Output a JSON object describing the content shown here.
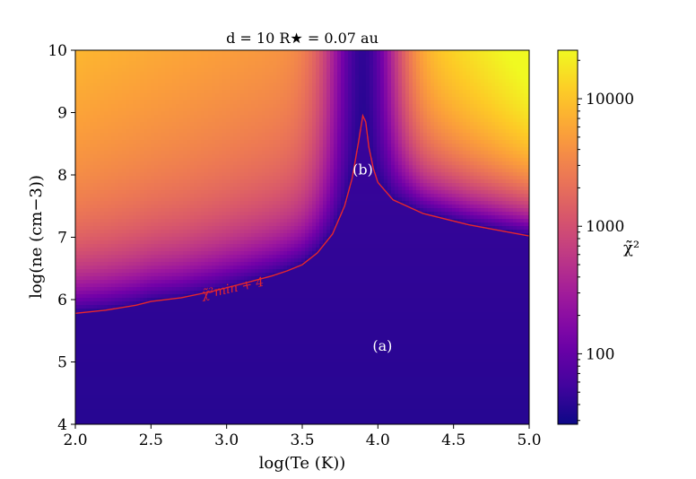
{
  "chart_data": {
    "type": "heatmap",
    "title": "d = 10 R★ = 0.07 au",
    "xlabel": "log(Te (K))",
    "ylabel": "log(ne (cm−3))",
    "colorbar_label": "χ̃²",
    "xlim": [
      2.0,
      5.0
    ],
    "ylim": [
      4,
      10
    ],
    "x_ticks": [
      "2.0",
      "2.5",
      "3.0",
      "3.5",
      "4.0",
      "4.5",
      "5.0"
    ],
    "y_ticks": [
      "4",
      "5",
      "6",
      "7",
      "8",
      "9",
      "10"
    ],
    "colorbar": {
      "scale": "log",
      "range": [
        28,
        24000
      ],
      "ticks": [
        "100",
        "1000",
        "10000"
      ],
      "colormap": [
        "#0d0887",
        "#46039f",
        "#7201a8",
        "#9c179e",
        "#bd3786",
        "#d8576b",
        "#ed7953",
        "#fb9f3a",
        "#fdca26",
        "#f0f921"
      ]
    },
    "contour": {
      "label": "χ̃²min + 4",
      "color": "#e8262d",
      "points": [
        [
          2.0,
          5.78
        ],
        [
          2.2,
          5.83
        ],
        [
          2.4,
          5.91
        ],
        [
          2.5,
          5.97
        ],
        [
          2.7,
          6.03
        ],
        [
          2.9,
          6.13
        ],
        [
          3.1,
          6.25
        ],
        [
          3.3,
          6.38
        ],
        [
          3.4,
          6.46
        ],
        [
          3.5,
          6.56
        ],
        [
          3.6,
          6.75
        ],
        [
          3.7,
          7.05
        ],
        [
          3.78,
          7.5
        ],
        [
          3.83,
          7.95
        ],
        [
          3.87,
          8.5
        ],
        [
          3.9,
          8.95
        ],
        [
          3.92,
          8.85
        ],
        [
          3.94,
          8.45
        ],
        [
          3.97,
          8.1
        ],
        [
          4.0,
          7.88
        ],
        [
          4.1,
          7.6
        ],
        [
          4.3,
          7.38
        ],
        [
          4.6,
          7.2
        ],
        [
          5.0,
          7.02
        ]
      ]
    },
    "annotations": [
      {
        "text": "(a)",
        "x": 4.03,
        "y": 5.25
      },
      {
        "text": "(b)",
        "x": 3.9,
        "y": 8.08
      }
    ]
  }
}
